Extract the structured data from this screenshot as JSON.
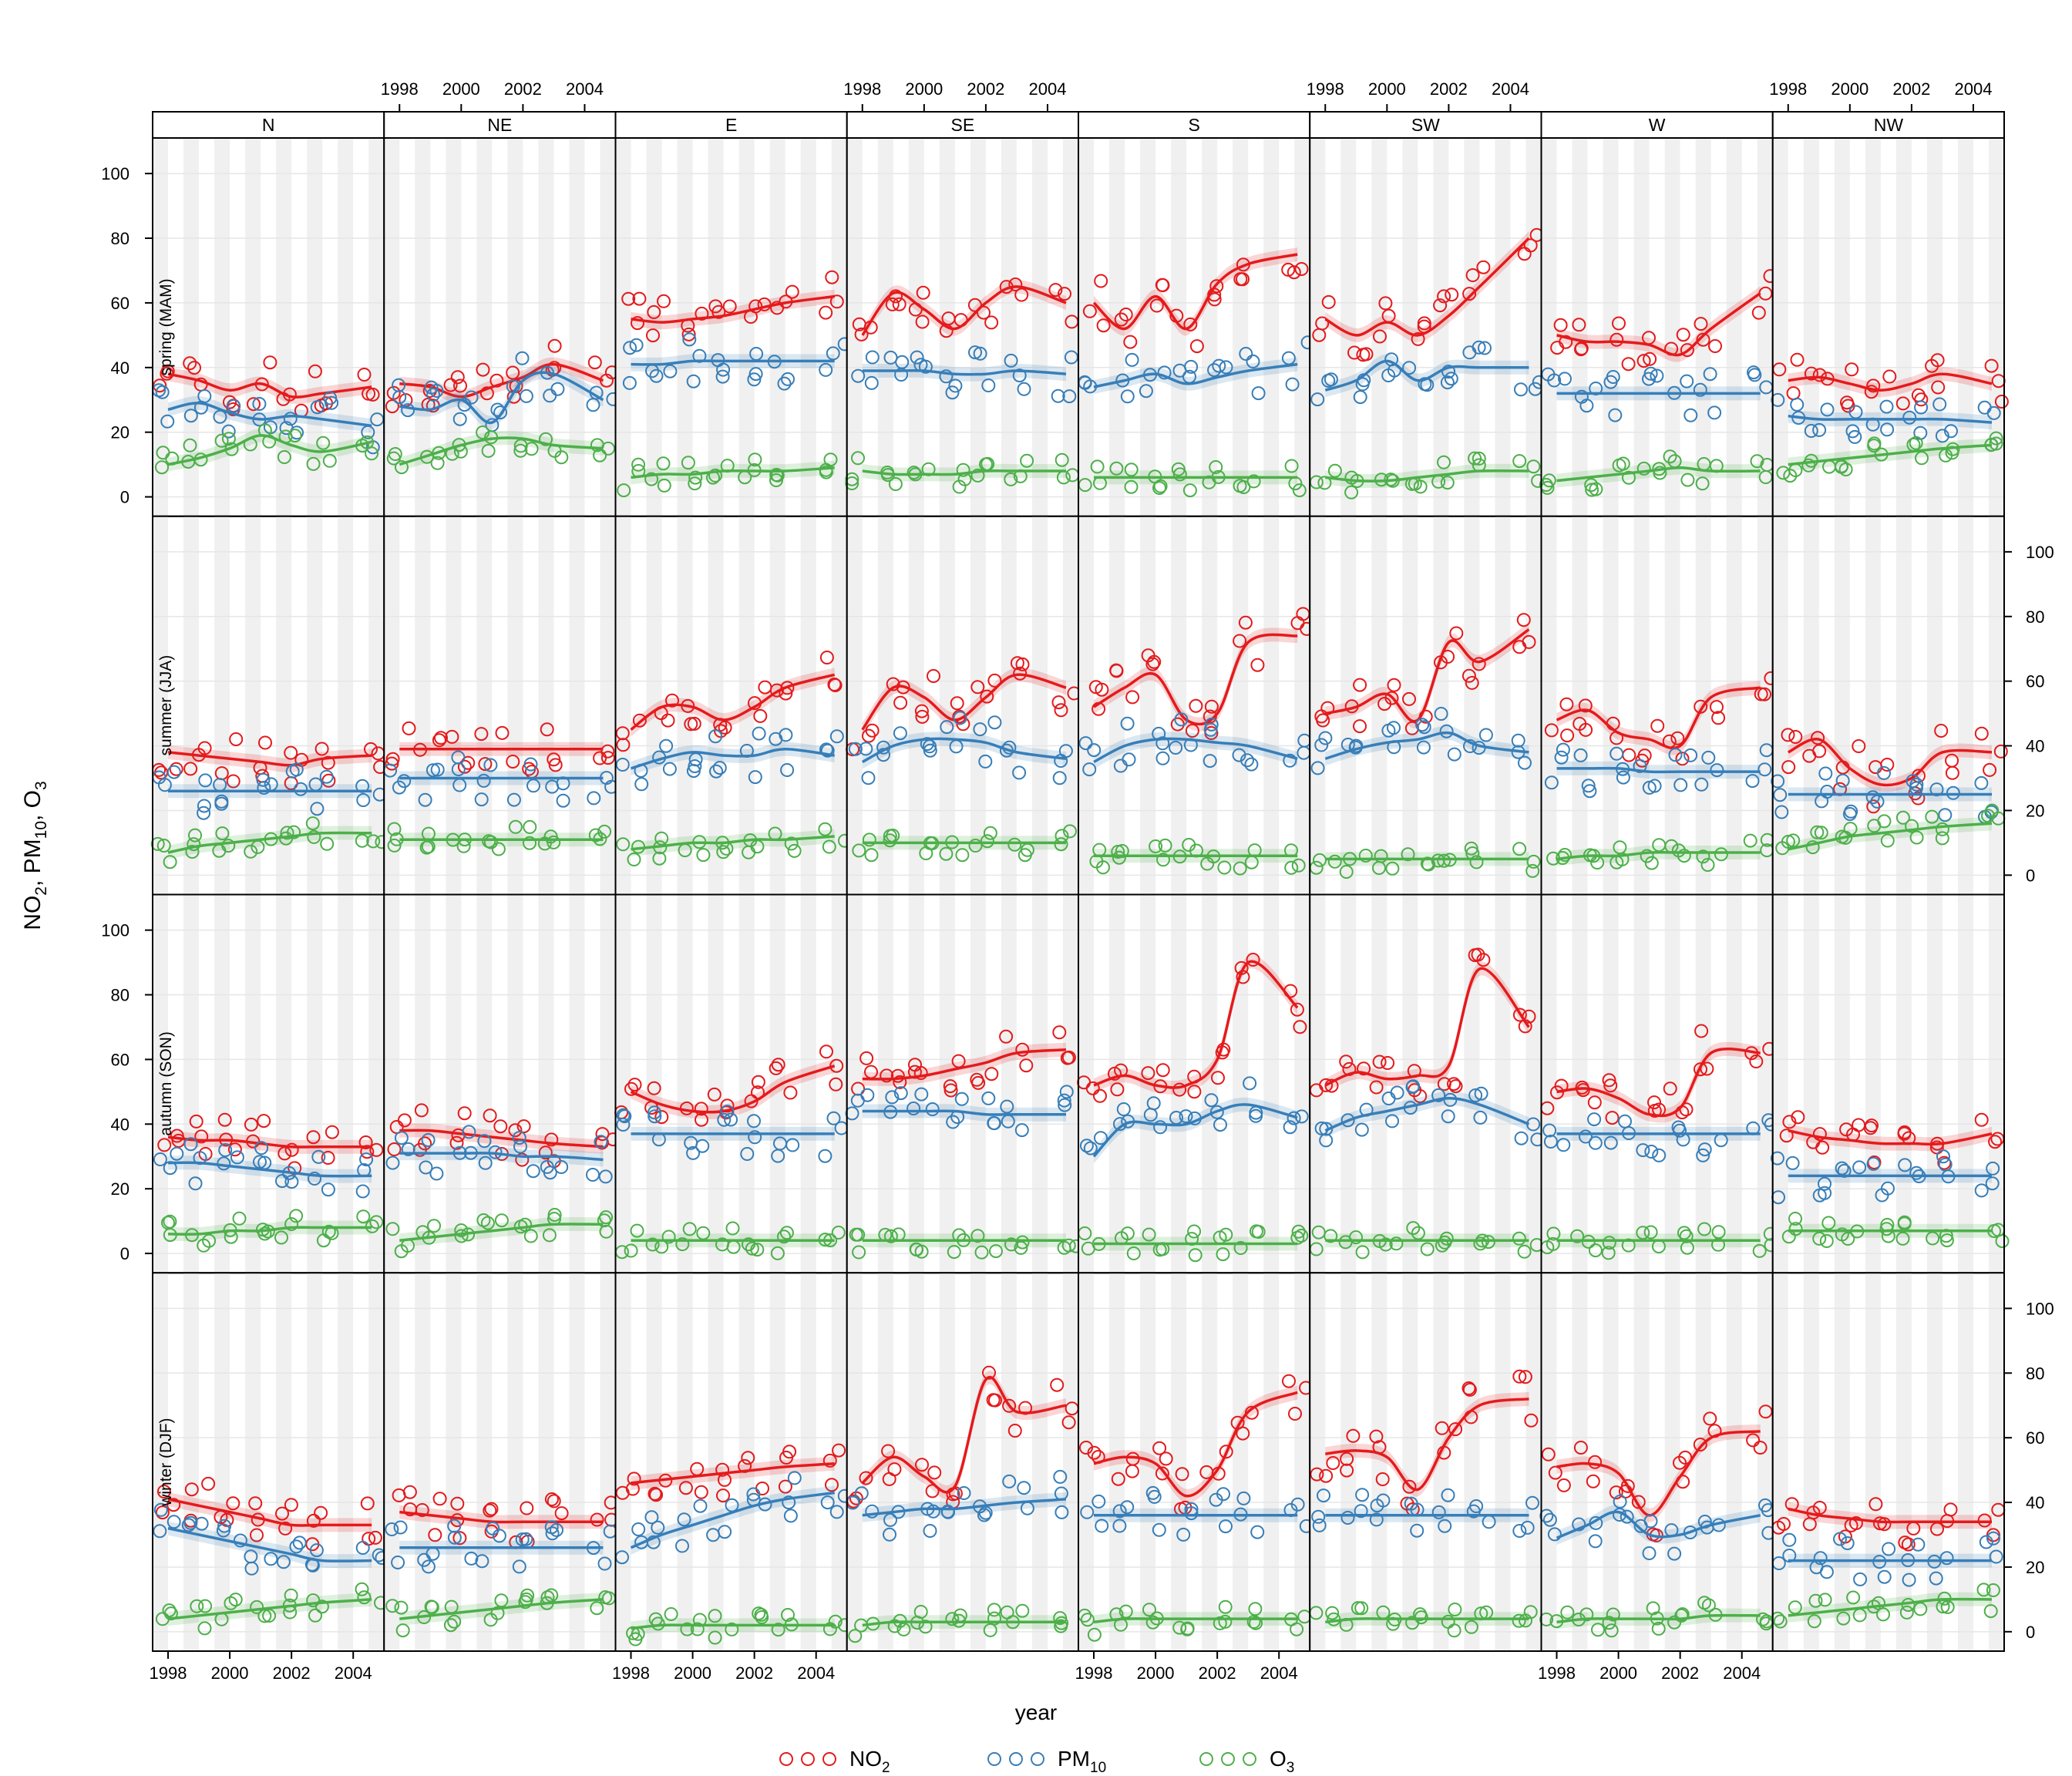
{
  "chart_data": {
    "type": "scatter",
    "ylabel": "NO2, PM10, O3",
    "ylabel_parts": {
      "no2": "NO",
      "no2_sub": "2",
      "pm": "PM",
      "pm_sub": "10",
      "o3": "O",
      "o3_sub": "3"
    },
    "xlabel": "year",
    "xlim": [
      1997.5,
      2005.0
    ],
    "ylim": [
      -6,
      111
    ],
    "x_ticks": [
      1998,
      2000,
      2002,
      2004
    ],
    "y_ticks": [
      0,
      20,
      40,
      60,
      80,
      100
    ],
    "grid": true,
    "legend_position": "bottom",
    "colors": {
      "NO2": "#e41a1c",
      "PM10": "#377eb8",
      "O3": "#4daf4a",
      "band_shade": "#f0f0f0",
      "grid": "#e6e6e6"
    },
    "series_legend": [
      {
        "key": "NO2",
        "label": "NO",
        "sub": "2"
      },
      {
        "key": "PM10",
        "label": "PM",
        "sub": "10"
      },
      {
        "key": "O3",
        "label": "O",
        "sub": "3"
      }
    ],
    "directions": [
      "N",
      "NE",
      "E",
      "SE",
      "S",
      "SW",
      "W",
      "NW"
    ],
    "seasons": [
      "spring (MAM)",
      "summer (JJA)",
      "autumn (SON)",
      "winter (DJF)"
    ],
    "trend_points": {
      "spring (MAM)": {
        "N": {
          "NO2": [
            38,
            36,
            33,
            35,
            31,
            32,
            34
          ],
          "PM10": [
            27,
            29,
            26,
            24,
            25,
            24,
            22
          ],
          "O3": [
            10,
            12,
            15,
            19,
            16,
            14,
            17
          ]
        },
        "NE": {
          "NO2": [
            35,
            34,
            31,
            34,
            37,
            41,
            36
          ],
          "PM10": [
            28,
            27,
            30,
            23,
            36,
            38,
            30
          ],
          "O3": [
            10,
            13,
            16,
            18,
            18,
            16,
            15
          ]
        },
        "E": {
          "NO2": [
            55,
            54,
            55,
            56,
            58,
            60,
            62
          ],
          "PM10": [
            41,
            41,
            42,
            42,
            42,
            42,
            42
          ],
          "O3": [
            6,
            7,
            7,
            8,
            8,
            8,
            9
          ]
        },
        "SE": {
          "NO2": [
            50,
            63,
            58,
            52,
            60,
            65,
            60
          ],
          "PM10": [
            39,
            39,
            39,
            38,
            38,
            39,
            38
          ],
          "O3": [
            8,
            7,
            7,
            7,
            8,
            8,
            8
          ]
        },
        "S": {
          "NO2": [
            60,
            52,
            62,
            52,
            66,
            72,
            75
          ],
          "PM10": [
            34,
            36,
            38,
            35,
            37,
            39,
            41
          ],
          "O3": [
            6,
            6,
            6,
            6,
            6,
            6,
            6
          ]
        },
        "SW": {
          "NO2": [
            55,
            50,
            54,
            50,
            56,
            65,
            80
          ],
          "PM10": [
            33,
            36,
            42,
            36,
            40,
            40,
            40
          ],
          "O3": [
            6,
            5,
            5,
            6,
            7,
            8,
            8
          ]
        },
        "W": {
          "NO2": [
            50,
            48,
            48,
            47,
            44,
            52,
            63
          ],
          "PM10": [
            32,
            32,
            32,
            32,
            32,
            32,
            32
          ],
          "O3": [
            5,
            6,
            7,
            8,
            9,
            8,
            8
          ]
        },
        "NW": {
          "NO2": [
            36,
            37,
            35,
            33,
            35,
            38,
            35
          ],
          "PM10": [
            25,
            24,
            24,
            24,
            24,
            24,
            23
          ],
          "O3": [
            10,
            11,
            12,
            13,
            14,
            15,
            16
          ]
        }
      },
      "summer (JJA)": {
        "N": {
          "NO2": [
            38,
            37,
            36,
            35,
            34,
            36,
            37
          ],
          "PM10": [
            26,
            26,
            26,
            26,
            26,
            26,
            26
          ],
          "O3": [
            7,
            9,
            10,
            11,
            12,
            13,
            13
          ]
        },
        "NE": {
          "NO2": [
            39,
            39,
            39,
            39,
            39,
            39,
            39
          ],
          "PM10": [
            30,
            30,
            30,
            30,
            30,
            30,
            30
          ],
          "O3": [
            11,
            11,
            11,
            11,
            11,
            11,
            11
          ]
        },
        "E": {
          "NO2": [
            45,
            52,
            52,
            48,
            52,
            58,
            62
          ],
          "PM10": [
            33,
            36,
            38,
            37,
            37,
            39,
            37
          ],
          "O3": [
            8,
            9,
            10,
            10,
            11,
            11,
            12
          ]
        },
        "SE": {
          "NO2": [
            45,
            58,
            55,
            48,
            55,
            62,
            58
          ],
          "PM10": [
            35,
            40,
            42,
            42,
            41,
            38,
            36
          ],
          "O3": [
            10,
            10,
            10,
            10,
            10,
            10,
            10
          ]
        },
        "S": {
          "NO2": [
            52,
            58,
            62,
            48,
            50,
            72,
            74
          ],
          "PM10": [
            35,
            40,
            42,
            42,
            41,
            40,
            36
          ],
          "O3": [
            6,
            6,
            6,
            6,
            6,
            6,
            6
          ]
        },
        "SW": {
          "NO2": [
            50,
            52,
            56,
            48,
            72,
            66,
            76
          ],
          "PM10": [
            36,
            39,
            41,
            42,
            44,
            40,
            38
          ],
          "O3": [
            5,
            5,
            5,
            5,
            5,
            5,
            5
          ]
        },
        "W": {
          "NO2": [
            48,
            51,
            44,
            42,
            40,
            55,
            58
          ],
          "PM10": [
            33,
            33,
            33,
            32,
            32,
            32,
            32
          ],
          "O3": [
            5,
            6,
            6,
            7,
            7,
            7,
            7
          ]
        },
        "NW": {
          "NO2": [
            38,
            42,
            33,
            28,
            30,
            38,
            38
          ],
          "PM10": [
            25,
            25,
            25,
            25,
            25,
            25,
            25
          ],
          "O3": [
            8,
            10,
            12,
            13,
            14,
            15,
            16
          ]
        }
      },
      "autumn (SON)": {
        "N": {
          "NO2": [
            36,
            35,
            35,
            34,
            33,
            33,
            33
          ],
          "PM10": [
            28,
            28,
            27,
            26,
            25,
            24,
            24
          ],
          "O3": [
            6,
            6,
            7,
            7,
            8,
            8,
            8
          ]
        },
        "NE": {
          "NO2": [
            38,
            38,
            37,
            36,
            35,
            34,
            33
          ],
          "PM10": [
            31,
            31,
            31,
            31,
            30,
            30,
            29
          ],
          "O3": [
            4,
            5,
            6,
            7,
            8,
            9,
            9
          ]
        },
        "E": {
          "NO2": [
            50,
            46,
            44,
            44,
            47,
            53,
            58
          ],
          "PM10": [
            37,
            37,
            37,
            37,
            37,
            37,
            37
          ],
          "O3": [
            4,
            4,
            4,
            4,
            4,
            4,
            4
          ]
        },
        "SE": {
          "NO2": [
            54,
            54,
            55,
            57,
            59,
            62,
            63
          ],
          "PM10": [
            44,
            44,
            44,
            44,
            43,
            43,
            43
          ],
          "O3": [
            4,
            4,
            4,
            4,
            4,
            4,
            4
          ]
        },
        "S": {
          "NO2": [
            52,
            55,
            52,
            52,
            60,
            90,
            76
          ],
          "PM10": [
            30,
            40,
            40,
            40,
            44,
            46,
            42
          ],
          "O3": [
            3,
            3,
            3,
            3,
            3,
            3,
            3
          ]
        },
        "SW": {
          "NO2": [
            52,
            56,
            54,
            55,
            58,
            88,
            70
          ],
          "PM10": [
            38,
            42,
            44,
            46,
            48,
            46,
            40
          ],
          "O3": [
            4,
            4,
            4,
            4,
            4,
            4,
            4
          ]
        },
        "W": {
          "NO2": [
            50,
            51,
            48,
            43,
            45,
            62,
            62
          ],
          "PM10": [
            37,
            37,
            37,
            37,
            37,
            37,
            37
          ],
          "O3": [
            4,
            4,
            4,
            4,
            4,
            4,
            4
          ]
        },
        "NW": {
          "NO2": [
            38,
            36,
            35,
            34,
            34,
            34,
            37
          ],
          "PM10": [
            24,
            24,
            24,
            24,
            24,
            24,
            24
          ],
          "O3": [
            7,
            7,
            7,
            7,
            7,
            7,
            7
          ]
        }
      },
      "winter (DJF)": {
        "N": {
          "NO2": [
            41,
            39,
            37,
            35,
            33,
            33,
            33
          ],
          "PM10": [
            32,
            30,
            28,
            26,
            24,
            22,
            22
          ],
          "O3": [
            4,
            5,
            6,
            7,
            8,
            9,
            10
          ]
        },
        "NE": {
          "NO2": [
            37,
            36,
            35,
            34,
            34,
            34,
            34
          ],
          "PM10": [
            26,
            26,
            26,
            26,
            26,
            26,
            26
          ],
          "O3": [
            4,
            5,
            6,
            7,
            8,
            9,
            10
          ]
        },
        "E": {
          "NO2": [
            46,
            47,
            48,
            49,
            50,
            51,
            52
          ],
          "PM10": [
            26,
            30,
            33,
            36,
            39,
            41,
            43
          ],
          "O3": [
            1,
            2,
            2,
            2,
            2,
            2,
            2
          ]
        },
        "SE": {
          "NO2": [
            46,
            54,
            48,
            45,
            78,
            68,
            70
          ],
          "PM10": [
            36,
            37,
            38,
            38,
            39,
            40,
            41
          ],
          "O3": [
            2,
            3,
            3,
            3,
            3,
            3,
            3
          ]
        },
        "S": {
          "NO2": [
            52,
            54,
            52,
            42,
            50,
            68,
            74
          ],
          "PM10": [
            36,
            36,
            36,
            36,
            36,
            36,
            36
          ],
          "O3": [
            3,
            4,
            4,
            4,
            4,
            4,
            4
          ]
        },
        "SW": {
          "NO2": [
            55,
            56,
            54,
            44,
            60,
            70,
            72
          ],
          "PM10": [
            36,
            36,
            36,
            36,
            36,
            36,
            36
          ],
          "O3": [
            3,
            4,
            4,
            4,
            4,
            4,
            4
          ]
        },
        "W": {
          "NO2": [
            51,
            52,
            49,
            36,
            48,
            60,
            62
          ],
          "PM10": [
            29,
            33,
            37,
            30,
            30,
            33,
            36
          ],
          "O3": [
            3,
            4,
            4,
            4,
            4,
            5,
            5
          ]
        },
        "NW": {
          "NO2": [
            38,
            36,
            35,
            34,
            34,
            34,
            34
          ],
          "PM10": [
            22,
            22,
            22,
            22,
            22,
            22,
            22
          ],
          "O3": [
            5,
            6,
            7,
            8,
            9,
            10,
            10
          ]
        }
      }
    }
  }
}
